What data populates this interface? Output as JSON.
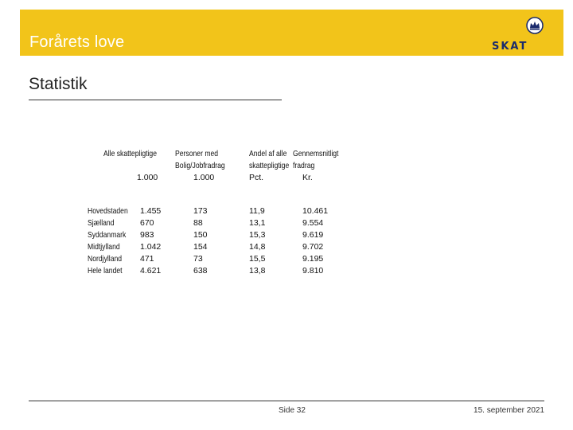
{
  "header": {
    "title": "Forårets love",
    "logo_text": "SKAT",
    "background_color": "#f2c41a",
    "logo_color": "#1a2a6c"
  },
  "slide_title": "Statistik",
  "table": {
    "headers": [
      [
        "Alle skattepligtige",
        "",
        "1.000"
      ],
      [
        "Personer med",
        "Bolig/Jobfradrag",
        "1.000"
      ],
      [
        "Andel af alle",
        "skattepligtige",
        "Pct."
      ],
      [
        "Gennemsnitligt",
        "fradrag",
        "Kr."
      ]
    ],
    "rows": [
      {
        "region": "Hovedstaden",
        "values": [
          "1.455",
          "173",
          "11,9",
          "10.461"
        ]
      },
      {
        "region": "Sjælland",
        "values": [
          "670",
          "88",
          "13,1",
          "9.554"
        ]
      },
      {
        "region": "Syddanmark",
        "values": [
          "983",
          "150",
          "15,3",
          "9.619"
        ]
      },
      {
        "region": "Midtjylland",
        "values": [
          "1.042",
          "154",
          "14,8",
          "9.702"
        ]
      },
      {
        "region": "Nordjylland",
        "values": [
          "471",
          "73",
          "15,5",
          "9.195"
        ]
      },
      {
        "region": "Hele landet",
        "values": [
          "4.621",
          "638",
          "13,8",
          "9.810"
        ]
      }
    ]
  },
  "footer": {
    "page": "Side 32",
    "date": "15. september 2021"
  }
}
